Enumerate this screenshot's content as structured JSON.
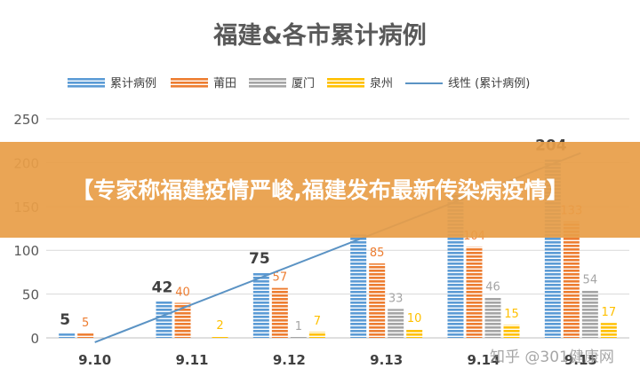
{
  "chart_data": {
    "type": "bar",
    "title": "福建&各市累计病例",
    "categories": [
      "9.10",
      "9.11",
      "9.12",
      "9.13",
      "9.14",
      "9.15"
    ],
    "series": [
      {
        "name": "累计病例",
        "values": [
          5,
          42,
          75,
          118,
          165,
          204
        ],
        "labels": [
          "5",
          "42",
          "75",
          "",
          "",
          "204"
        ],
        "color": "#5b9bd5"
      },
      {
        "name": "莆田",
        "values": [
          5,
          40,
          57,
          85,
          104,
          133
        ],
        "labels": [
          "5",
          "40",
          "57",
          "85",
          "104",
          "133"
        ],
        "color": "#ed7d31"
      },
      {
        "name": "厦门",
        "values": [
          0,
          0,
          1,
          33,
          46,
          54
        ],
        "labels": [
          "",
          "",
          "1",
          "33",
          "46",
          "54"
        ],
        "color": "#a5a5a5"
      },
      {
        "name": "泉州",
        "values": [
          0,
          2,
          7,
          10,
          15,
          17
        ],
        "labels": [
          "",
          "2",
          "7",
          "10",
          "15",
          "17"
        ],
        "color": "#ffc000"
      }
    ],
    "trendline": {
      "name": "线性 (累计病例)",
      "start": -5,
      "end": 211,
      "color": "#5b93c4"
    },
    "y_ticks": [
      "0",
      "50",
      "100",
      "150",
      "200",
      "250"
    ],
    "ylim": [
      0,
      250
    ],
    "grid": true,
    "legend_position": "top"
  },
  "banner": {
    "text": "【专家称福建疫情严峻,福建发布最新传染病疫情】"
  },
  "watermark": {
    "text": "知乎 @301健康网"
  }
}
